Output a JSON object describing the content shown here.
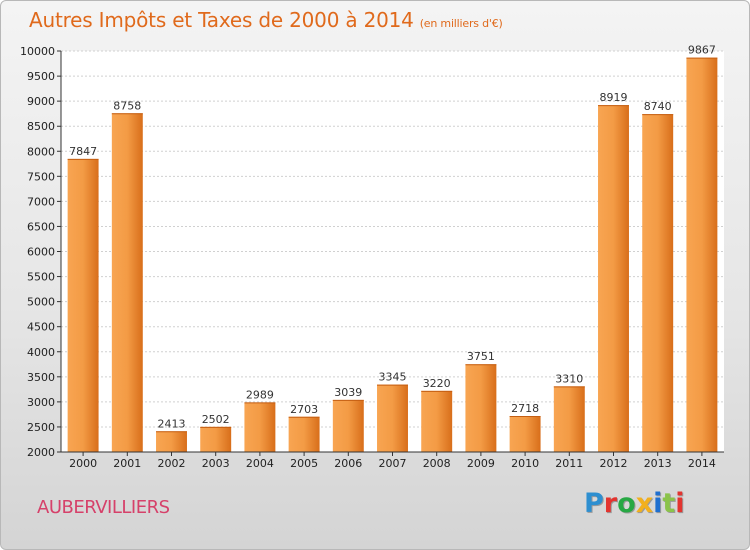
{
  "title": "Autres Impôts et Taxes de 2000 à 2014",
  "unit_label": "(en milliers d'€)",
  "city": "AUBERVILLIERS",
  "logo_text": "Proxiti",
  "colors": {
    "title": "#e06a1c",
    "city": "#d6416a",
    "bar_light": "#f8a552",
    "bar_dark": "#d86e1a",
    "logo": [
      "#2e8fd0",
      "#e3342f",
      "#27a844",
      "#f2b01e",
      "#1e6fd0",
      "#8bc34a",
      "#e3342f"
    ]
  },
  "chart_data": {
    "type": "bar",
    "categories": [
      "2000",
      "2001",
      "2002",
      "2003",
      "2004",
      "2005",
      "2006",
      "2007",
      "2008",
      "2009",
      "2010",
      "2011",
      "2012",
      "2013",
      "2014"
    ],
    "values": [
      7847,
      8758,
      2413,
      2502,
      2989,
      2703,
      3039,
      3345,
      3220,
      3751,
      2718,
      3310,
      8919,
      8740,
      9867
    ],
    "ylim": [
      2000,
      10000
    ],
    "yticks": [
      2000,
      2500,
      3000,
      3500,
      4000,
      4500,
      5000,
      5500,
      6000,
      6500,
      7000,
      7500,
      8000,
      8500,
      9000,
      9500,
      10000
    ],
    "grid": true,
    "legend": "none"
  }
}
